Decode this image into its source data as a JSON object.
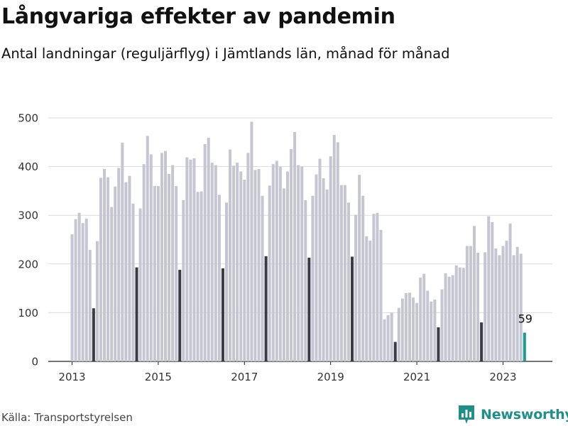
{
  "title": "Långvariga effekter av pandemin",
  "subtitle": "Antal landningar (reguljärflyg) i Jämtlands län, månad för månad",
  "source": "Källa: Transportstyrelsen",
  "brand": {
    "name": "Newsworthy",
    "logo_icon": "bar-chart-logo-icon"
  },
  "colors": {
    "regular": "#c6c6d2",
    "july": "#3b3b48",
    "latest": "#1f9a92",
    "brand": "#1f8f8a"
  },
  "chart_data": {
    "type": "bar",
    "title": "Långvariga effekter av pandemin",
    "subtitle": "Antal landningar (reguljärflyg) i Jämtlands län, månad för månad",
    "xlabel": "",
    "ylabel": "",
    "ylim": [
      0,
      530
    ],
    "yticks": [
      0,
      100,
      200,
      300,
      400,
      500
    ],
    "xticks": [
      "2013",
      "2015",
      "2017",
      "2019",
      "2021",
      "2023"
    ],
    "grid": true,
    "start": "2013-01",
    "end": "2023-07",
    "highlight": "July of each year shown dark; latest month shown teal",
    "annotation": {
      "text": "59",
      "month": "2023-07"
    },
    "series": [
      {
        "values": [
          261,
          292,
          305,
          284,
          293,
          229,
          109,
          247,
          377,
          395,
          378,
          317,
          359,
          397,
          449,
          368,
          381,
          324,
          193,
          314,
          405,
          463,
          425,
          360,
          360,
          428,
          432,
          385,
          403,
          360,
          188,
          331,
          419,
          414,
          417,
          348,
          349,
          446,
          459,
          408,
          403,
          342,
          191,
          326,
          435,
          402,
          408,
          390,
          373,
          428,
          492,
          393,
          395,
          340,
          216,
          361,
          405,
          412,
          400,
          355,
          390,
          436,
          471,
          403,
          400,
          331,
          213,
          340,
          384,
          416,
          376,
          353,
          421,
          465,
          450,
          362,
          362,
          326,
          215,
          301,
          383,
          340,
          257,
          248,
          303,
          305,
          270,
          86,
          95,
          100,
          40,
          110,
          129,
          140,
          141,
          131,
          120,
          172,
          180,
          145,
          123,
          127,
          70,
          148,
          181,
          174,
          177,
          197,
          193,
          192,
          237,
          237,
          278,
          223,
          80,
          224,
          298,
          286,
          232,
          218,
          237,
          248,
          283,
          218,
          235,
          221,
          59
        ]
      }
    ]
  }
}
